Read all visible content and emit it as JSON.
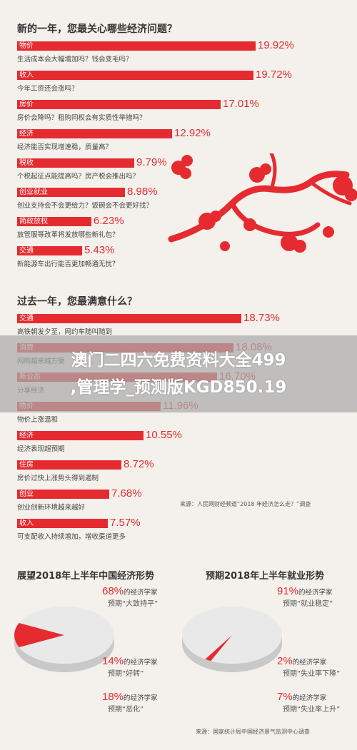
{
  "chart_data": [
    {
      "type": "bar",
      "title": "新的一年，您最关心哪些经济问题？",
      "categories": [
        "物价",
        "收入",
        "房价",
        "经济",
        "税收",
        "创业就业",
        "简政放权",
        "交通"
      ],
      "values": [
        19.92,
        19.72,
        17.01,
        12.92,
        9.79,
        8.98,
        6.23,
        5.43
      ],
      "value_labels": [
        "19.92%",
        "19.72%",
        "17.01%",
        "12.92%",
        "9.79%",
        "8.98%",
        "6.23%",
        "5.43%"
      ],
      "subtitles": [
        "生活成本会大幅增加吗？钱会变毛吗？",
        "今年工资还会涨吗？",
        "房价会降吗？租购同权会有实质性举措吗？",
        "经济能否实现增速稳，质量高？",
        "个税起征点能提高吗？房产税会推出吗？",
        "创业支持会不会更给力？饭碗会不会更好找？",
        "放管服等改革将发放哪些新礼包？",
        "新能源车出行能否更加畅通无忧？"
      ]
    },
    {
      "type": "bar",
      "title": "过去一年，您最满意什么？",
      "categories": [
        "交通",
        "消费",
        "新业态",
        "物价",
        "经济",
        "住房",
        "创业",
        "收入"
      ],
      "values": [
        18.73,
        18.08,
        16.7,
        11.96,
        10.55,
        8.72,
        7.68,
        7.57
      ],
      "value_labels": [
        "18.73%",
        "18.08%",
        "16.70%",
        "11.96%",
        "10.55%",
        "8.72%",
        "7.68%",
        "7.57%"
      ],
      "subtitles": [
        "高铁朝发夕至，网约车随叫随到",
        "网购越来越方便",
        "分享经济",
        "物价上涨温和",
        "经济表现超预期",
        "房价过快上涨势头得到遏制",
        "创业创新环境越来越好",
        "可支配收入持续增加，增收渠道更多"
      ],
      "source": "来源：人民网财经频道“2018 年经济怎么走？”调查"
    },
    {
      "type": "pie",
      "title": "展望2018年上半年中国经济形势",
      "categories": [
        "预期“大致持平”",
        "预期“好转”",
        "预期“恶化”"
      ],
      "values": [
        68,
        14,
        18
      ],
      "value_labels": [
        "68%",
        "14%",
        "18%"
      ],
      "annotation_suffix": "的经济学家"
    },
    {
      "type": "pie",
      "title": "预期2018年上半年就业形势",
      "categories": [
        "预期“就业稳定”",
        "预期“失业率下降”",
        "预期“失业率上升”"
      ],
      "values": [
        91,
        2,
        7
      ],
      "value_labels": [
        "91%",
        "2%",
        "7%"
      ],
      "annotation_suffix": "的经济学家",
      "source": "来源：国家统计局中国经济景气监测中心调查"
    }
  ],
  "overlay": {
    "line1": "澳门二四六免费资料大全499",
    "line2": ",管理学_预测版KGD850.19"
  },
  "colors": {
    "accent": "#e52b30",
    "background": "#f4f1ec",
    "pie_grey": "#e9e9e9",
    "pie_grey_side": "#c9c9c9"
  }
}
